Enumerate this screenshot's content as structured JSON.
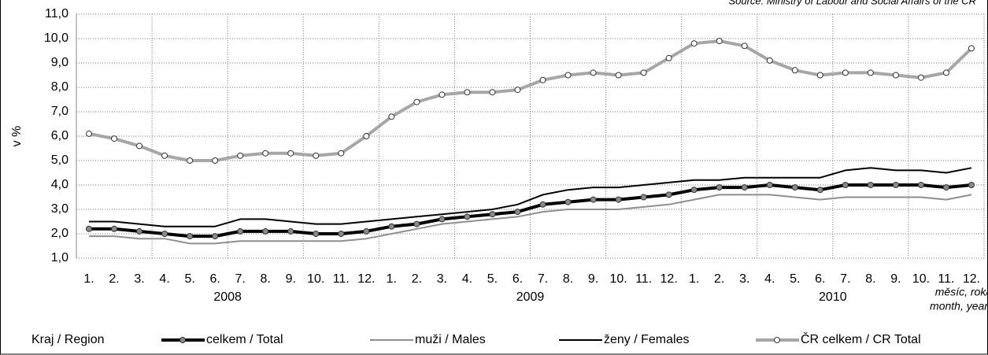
{
  "chart_data": {
    "type": "line",
    "source": "Source: Ministry of Labour and Social Affairs of the CR",
    "ylabel": "v %",
    "xlabel": [
      "měsíc, rok/",
      "month, year"
    ],
    "legend_title": "Kraj / Region",
    "categories": [
      "1.",
      "2.",
      "3.",
      "4.",
      "5.",
      "6.",
      "7.",
      "8.",
      "9.",
      "10.",
      "11.",
      "12.",
      "1.",
      "2.",
      "3.",
      "4.",
      "5.",
      "6.",
      "7.",
      "8.",
      "9.",
      "10.",
      "11.",
      "12.",
      "1.",
      "2.",
      "3.",
      "4.",
      "5.",
      "6.",
      "7.",
      "8.",
      "9.",
      "10.",
      "11.",
      "12."
    ],
    "groups": [
      "2008",
      "2009",
      "2010"
    ],
    "ylim": [
      1,
      11
    ],
    "yticks": [
      {
        "value": 1,
        "label": "1,0"
      },
      {
        "value": 2,
        "label": "2,0"
      },
      {
        "value": 3,
        "label": "3,0"
      },
      {
        "value": 4,
        "label": "4,0"
      },
      {
        "value": 5,
        "label": "5,0"
      },
      {
        "value": 6,
        "label": "6,0"
      },
      {
        "value": 7,
        "label": "7,0"
      },
      {
        "value": 8,
        "label": "8,0"
      },
      {
        "value": 9,
        "label": "9,0"
      },
      {
        "value": 10,
        "label": "10,0"
      },
      {
        "value": 11,
        "label": "11,0"
      }
    ],
    "grid": true,
    "series": [
      {
        "name": "celkem / Total",
        "color": "#000000",
        "marker_color": "#8a8a8a",
        "width": 4,
        "values": [
          2.2,
          2.2,
          2.1,
          2.0,
          1.9,
          1.9,
          2.1,
          2.1,
          2.1,
          2.0,
          2.0,
          2.1,
          2.3,
          2.4,
          2.6,
          2.7,
          2.8,
          2.9,
          3.2,
          3.3,
          3.4,
          3.4,
          3.5,
          3.6,
          3.8,
          3.9,
          3.9,
          4.0,
          3.9,
          3.8,
          4.0,
          4.0,
          4.0,
          4.0,
          3.9,
          4.0
        ]
      },
      {
        "name": "muži / Males",
        "color": "#8f8f8f",
        "width": 2,
        "values": [
          1.9,
          1.9,
          1.8,
          1.8,
          1.6,
          1.6,
          1.7,
          1.7,
          1.7,
          1.7,
          1.7,
          1.8,
          2.0,
          2.2,
          2.4,
          2.5,
          2.6,
          2.7,
          2.9,
          3.0,
          3.0,
          3.0,
          3.1,
          3.2,
          3.4,
          3.6,
          3.6,
          3.6,
          3.5,
          3.4,
          3.5,
          3.5,
          3.5,
          3.5,
          3.4,
          3.6
        ]
      },
      {
        "name": "ženy / Females",
        "color": "#000000",
        "width": 2,
        "values": [
          2.5,
          2.5,
          2.4,
          2.3,
          2.3,
          2.3,
          2.6,
          2.6,
          2.5,
          2.4,
          2.4,
          2.5,
          2.6,
          2.7,
          2.8,
          2.9,
          3.0,
          3.2,
          3.6,
          3.8,
          3.9,
          3.9,
          4.0,
          4.1,
          4.2,
          4.2,
          4.3,
          4.3,
          4.3,
          4.3,
          4.6,
          4.7,
          4.6,
          4.6,
          4.5,
          4.7
        ]
      },
      {
        "name": "ČR celkem / CR Total",
        "color": "#a6a6a6",
        "marker_color": "#ffffff",
        "width": 4,
        "values": [
          6.1,
          5.9,
          5.6,
          5.2,
          5.0,
          5.0,
          5.2,
          5.3,
          5.3,
          5.2,
          5.3,
          6.0,
          6.8,
          7.4,
          7.7,
          7.8,
          7.8,
          7.9,
          8.3,
          8.5,
          8.6,
          8.5,
          8.6,
          9.2,
          9.8,
          9.9,
          9.7,
          9.1,
          8.7,
          8.5,
          8.6,
          8.6,
          8.5,
          8.4,
          8.6,
          9.6
        ]
      }
    ]
  }
}
